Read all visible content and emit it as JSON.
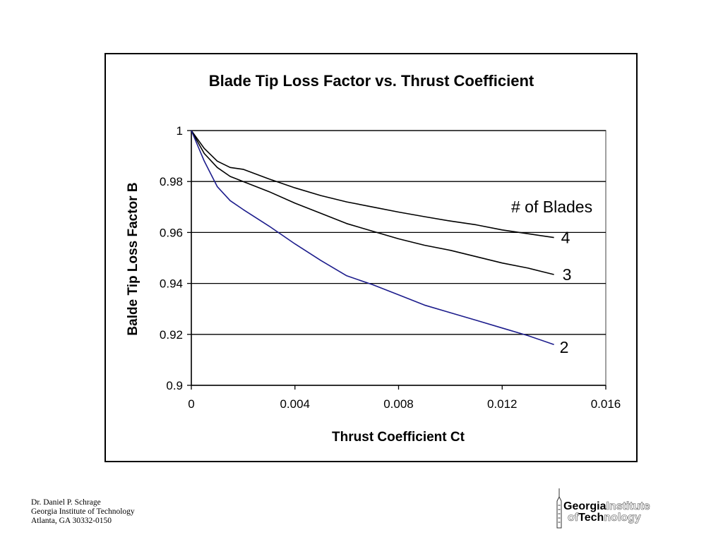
{
  "chart_data": {
    "type": "line",
    "title": "Blade Tip Loss Factor vs. Thrust Coefficient",
    "xlabel": "Thrust Coefficient Ct",
    "ylabel": "Balde Tip Loss Factor B",
    "xlim": [
      0,
      0.016
    ],
    "ylim": [
      0.9,
      1
    ],
    "x_ticks": [
      "0",
      "0.004",
      "0.008",
      "0.012",
      "0.016"
    ],
    "y_ticks": [
      "0.9",
      "0.92",
      "0.94",
      "0.96",
      "0.98",
      "1"
    ],
    "grid": "horizontal",
    "legend_title": "# of Blades",
    "series": [
      {
        "name": "4",
        "color": "#000000",
        "x": [
          0,
          0.0005,
          0.001,
          0.0015,
          0.002,
          0.003,
          0.004,
          0.005,
          0.006,
          0.007,
          0.008,
          0.009,
          0.01,
          0.011,
          0.012,
          0.013,
          0.014
        ],
        "y": [
          1,
          0.993,
          0.988,
          0.9855,
          0.9848,
          0.981,
          0.9775,
          0.9745,
          0.972,
          0.97,
          0.968,
          0.9662,
          0.9645,
          0.963,
          0.961,
          0.9595,
          0.958
        ]
      },
      {
        "name": "3",
        "color": "#000000",
        "x": [
          0,
          0.0005,
          0.001,
          0.0015,
          0.002,
          0.003,
          0.004,
          0.005,
          0.006,
          0.007,
          0.008,
          0.009,
          0.01,
          0.011,
          0.012,
          0.013,
          0.014
        ],
        "y": [
          1,
          0.991,
          0.9855,
          0.982,
          0.98,
          0.976,
          0.9715,
          0.9675,
          0.9635,
          0.9605,
          0.9575,
          0.955,
          0.953,
          0.9505,
          0.948,
          0.946,
          0.9435
        ]
      },
      {
        "name": "2",
        "color": "#1c1c8c",
        "x": [
          0,
          0.0005,
          0.001,
          0.0015,
          0.002,
          0.003,
          0.004,
          0.005,
          0.006,
          0.007,
          0.008,
          0.009,
          0.01,
          0.011,
          0.012,
          0.013,
          0.014
        ],
        "y": [
          1,
          0.988,
          0.978,
          0.9725,
          0.969,
          0.9625,
          0.9555,
          0.949,
          0.943,
          0.9395,
          0.9355,
          0.9315,
          0.9285,
          0.9255,
          0.9225,
          0.9195,
          0.916
        ]
      }
    ]
  },
  "footer": {
    "author": "Dr. Daniel P. Schrage",
    "institution": "Georgia Institute of Technology",
    "address": "Atlanta, GA  30332-0150"
  },
  "logo": {
    "line1_bold": "Georgia",
    "line1_outline": "Institute",
    "line2_outline_a": "of",
    "line2_bold": "Tech",
    "line2_outline_b": "nology"
  }
}
